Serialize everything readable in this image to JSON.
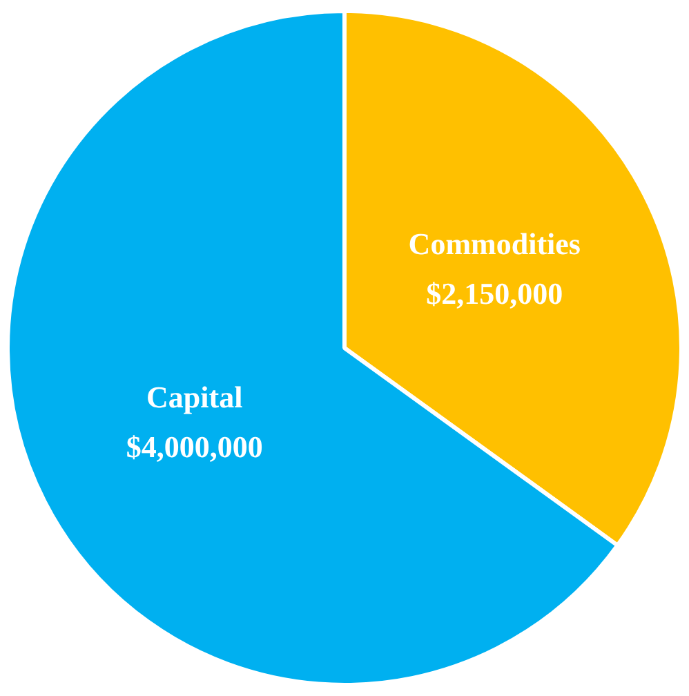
{
  "chart_data": {
    "type": "pie",
    "categories": [
      "Commodities",
      "Capital"
    ],
    "values": [
      2150000,
      4000000
    ],
    "colors": [
      "#ffc000",
      "#00b0f0"
    ],
    "value_labels": [
      "$2,150,000",
      "$4,000,000"
    ],
    "legend": false
  }
}
